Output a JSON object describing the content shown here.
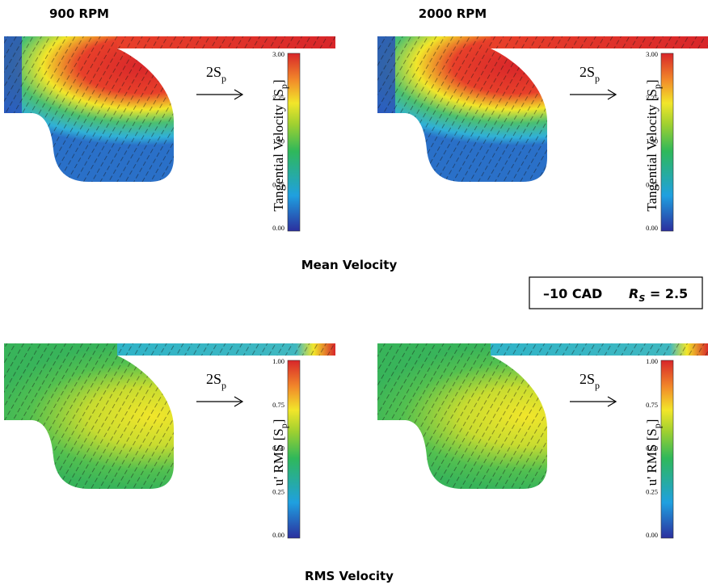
{
  "column_titles": [
    "900 RPM",
    "2000 RPM"
  ],
  "rows": [
    {
      "title": "Mean Velocity",
      "panels": [
        {
          "scale": {
            "text": "2S",
            "sub": "p"
          },
          "colorbar": {
            "label": "Tangential Velocity  [S",
            "label_sub": "p",
            "label_end": "]",
            "ticks": [
              "3.00",
              "2.25",
              "1.50",
              "0.75",
              "0.00"
            ]
          }
        },
        {
          "scale": {
            "text": "2S",
            "sub": "p"
          },
          "colorbar": {
            "label": "Tangential Velocity  [S",
            "label_sub": "p",
            "label_end": "]",
            "ticks": [
              "3.00",
              "2.25",
              "1.50",
              "0.75",
              "0.00"
            ]
          }
        }
      ]
    },
    {
      "title": "RMS  Velocity",
      "panels": [
        {
          "scale": {
            "text": "2S",
            "sub": "p"
          },
          "colorbar": {
            "label": "u' RMS  [S",
            "label_sub": "p",
            "label_end": "]",
            "ticks": [
              "1.00",
              "0.75",
              "0.50",
              "0.25",
              "0.00"
            ]
          }
        },
        {
          "scale": {
            "text": "2S",
            "sub": "p"
          },
          "colorbar": {
            "label": "u' RMS  [S",
            "label_sub": "p",
            "label_end": "]",
            "ticks": [
              "1.00",
              "0.75",
              "0.50",
              "0.25",
              "0.00"
            ]
          }
        }
      ]
    }
  ],
  "condition": {
    "cad": "–10 CAD",
    "rs_symbol": "R",
    "rs_sub": "S",
    "rs_value": " = 2.5"
  }
}
